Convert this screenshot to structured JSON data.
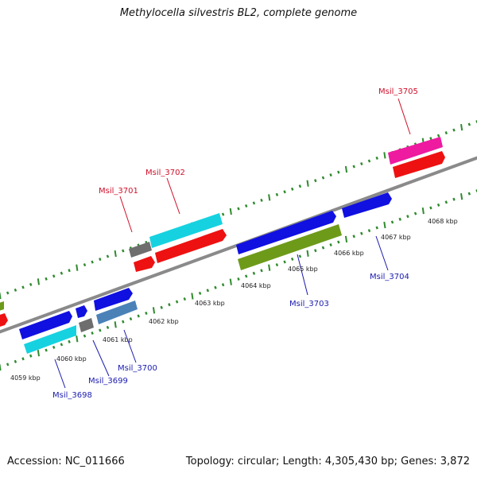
{
  "title": "Methylocella silvestris BL2, complete genome",
  "footer": {
    "accession": "Accession: NC_011666",
    "topology": "Topology: circular; Length: 4,305,430 bp; Genes: 3,872"
  },
  "colors": {
    "backbone": "#8a8a8a",
    "tick": "#2e8b2e",
    "top_label": "#d0102a",
    "bottom_label": "#1a1ab0",
    "scale_label": "#222222"
  },
  "scale_labels": [
    {
      "id": "4059",
      "text": "4059 kbp"
    },
    {
      "id": "4060",
      "text": "4060 kbp"
    },
    {
      "id": "4061",
      "text": "4061 kbp"
    },
    {
      "id": "4062",
      "text": "4062 kbp"
    },
    {
      "id": "4063",
      "text": "4063 kbp"
    },
    {
      "id": "4064",
      "text": "4064 kbp"
    },
    {
      "id": "4065",
      "text": "4065 kbp"
    },
    {
      "id": "4066",
      "text": "4066 kbp"
    },
    {
      "id": "4067",
      "text": "4067 kbp"
    },
    {
      "id": "4068",
      "text": "4068 kbp"
    }
  ],
  "gene_labels": {
    "msil_3698": "Msil_3698",
    "msil_3699": "Msil_3699",
    "msil_3700": "Msil_3700",
    "msil_3701": "Msil_3701",
    "msil_3702": "Msil_3702",
    "msil_3703": "Msil_3703",
    "msil_3704": "Msil_3704",
    "msil_3705": "Msil_3705"
  },
  "feature_colors": {
    "blue": "#1010e0",
    "cyan": "#16d2e0",
    "red": "#ee1111",
    "gray": "#6e6e6e",
    "olive": "#6e9a1a",
    "steel": "#4a82b8",
    "magenta": "#ee1aa0"
  }
}
